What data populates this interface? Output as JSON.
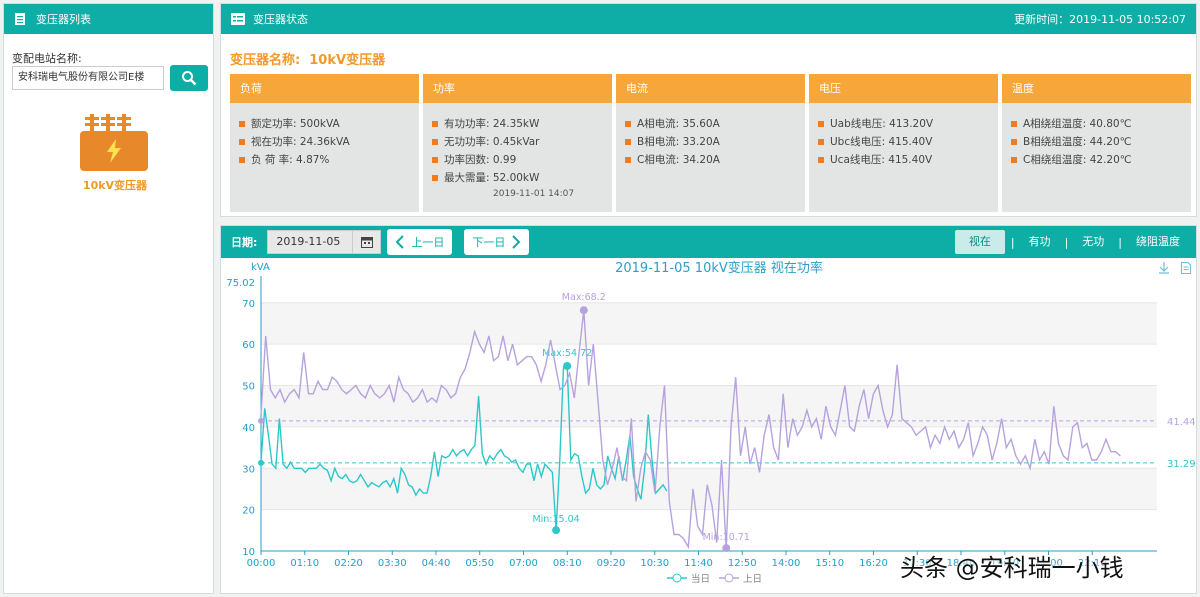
{
  "left_panel": {
    "title": "变压器列表",
    "station_label": "变配电站名称:",
    "station_value": "安科瑞电气股份有限公司E楼",
    "transformer_name": "10kV变压器"
  },
  "status_panel": {
    "title": "变压器状态",
    "update_label": "更新时间：",
    "update_time": "2019-11-05 10:52:07",
    "transformer_label": "变压器名称:",
    "transformer_value": "10kV变压器",
    "cards": [
      {
        "title": "负荷",
        "items": [
          "额定功率:   500kVA",
          "视在功率:   24.36kVA",
          "负 荷 率:   4.87%"
        ]
      },
      {
        "title": "功率",
        "items": [
          "有功功率:   24.35kW",
          "无功功率:   0.45kVar",
          "功率因数:   0.99",
          "最大需量:   52.00kW"
        ],
        "foot": "2019-11-01 14:07"
      },
      {
        "title": "电流",
        "items": [
          "A相电流:   35.60A",
          "B相电流:   33.20A",
          "C相电流:   34.20A"
        ]
      },
      {
        "title": "电压",
        "items": [
          "Uab线电压:   413.20V",
          "Ubc线电压:   415.40V",
          "Uca线电压:   415.40V"
        ]
      },
      {
        "title": "温度",
        "items": [
          "A相绕组温度:   40.80℃",
          "B相绕组温度:   44.20℃",
          "C相绕组温度:   42.20℃"
        ]
      }
    ]
  },
  "toolbar": {
    "date_label": "日期:",
    "date_value": "2019-11-05",
    "prev_label": "上一日",
    "next_label": "下一日",
    "tabs": [
      "视在",
      "有功",
      "无功",
      "绕阻温度"
    ]
  },
  "watermark": "头条 @安科瑞一小钱",
  "colors": {
    "teal": "#0eaea6",
    "orange": "#f7a739",
    "series_today": "#2ec7c9",
    "series_yesterday": "#b6a2de"
  },
  "chart_data": {
    "type": "line",
    "title": "2019-11-05  10kV变压器  视在功率",
    "ylabel": "kVA",
    "ylim": [
      10,
      75.02
    ],
    "ytick_top": "75.02",
    "yticks": [
      10,
      20,
      30,
      40,
      50,
      60,
      70
    ],
    "xticks": [
      "00:00",
      "01:10",
      "02:20",
      "03:30",
      "04:40",
      "05:50",
      "07:00",
      "08:10",
      "09:20",
      "10:30",
      "11:40",
      "12:50",
      "14:00",
      "15:10",
      "16:20",
      "17:30",
      "18:40",
      "19:50",
      "21:00",
      "22:10"
    ],
    "legend": [
      "当日",
      "上日"
    ],
    "series": [
      {
        "name": "当日",
        "color": "#2ec7c9",
        "max": {
          "label": "Max:54.72",
          "x": "08:10",
          "y": 54.72
        },
        "min": {
          "label": "Min:15.04",
          "x": "07:50",
          "y": 15.04
        },
        "avg": 31.29,
        "values": [
          31.5,
          44.5,
          38,
          31,
          30,
          42,
          31,
          30,
          31.5,
          30,
          30,
          30,
          29,
          30,
          30,
          30,
          31,
          30,
          29.5,
          27,
          30,
          28,
          27.5,
          28.5,
          27,
          26.5,
          27,
          28.5,
          27,
          25.5,
          26.5,
          26,
          25.5,
          26.5,
          27,
          25.5,
          27.5,
          24,
          30,
          28.5,
          26,
          25.5,
          23.5,
          25,
          24,
          24,
          28,
          34,
          28,
          33,
          32.5,
          33,
          34.5,
          33,
          34,
          34.5,
          33,
          34.5,
          35.5,
          47.5,
          33.5,
          31,
          33,
          32,
          33.5,
          34.5,
          33,
          32.5,
          31.5,
          32,
          30,
          29,
          31,
          31,
          27,
          31,
          28,
          31,
          30,
          29,
          15.04,
          32,
          54.5,
          54.72,
          32,
          33.5,
          33,
          28,
          24,
          25,
          30,
          26,
          25,
          26,
          33,
          30,
          27.5,
          33,
          27,
          32,
          38,
          28,
          25,
          22.5,
          30,
          43,
          32,
          24,
          25,
          26,
          24.5
        ]
      },
      {
        "name": "上日",
        "color": "#b6a2de",
        "max": {
          "label": "Max:68.2",
          "x": "08:10",
          "y": 68.2
        },
        "min": {
          "label": "Min:10.71",
          "x": "12:50",
          "y": 10.71
        },
        "avg": 41.44,
        "values": [
          43,
          62,
          49,
          47,
          49,
          46,
          48,
          49,
          47,
          58,
          48,
          48,
          51,
          49,
          49,
          52,
          51,
          49,
          48,
          49,
          50,
          48,
          47,
          50,
          48,
          47,
          48,
          50,
          46,
          52,
          49,
          48,
          46,
          47,
          49,
          46,
          47,
          46,
          50,
          49,
          47,
          48,
          52,
          54,
          58,
          63,
          60,
          58,
          62,
          56,
          57,
          62,
          56,
          60,
          55,
          56,
          57,
          57,
          55,
          51,
          55,
          61,
          55,
          49,
          50,
          53,
          47,
          58,
          68.2,
          50,
          60,
          46,
          32,
          26,
          30,
          35,
          28,
          27,
          42,
          22,
          30,
          34,
          32,
          24,
          40,
          50,
          22,
          14,
          14,
          13,
          11,
          25,
          16,
          14,
          26,
          21,
          12,
          32,
          10.71,
          40,
          52,
          33,
          40,
          31,
          35,
          29,
          38,
          43,
          35,
          32,
          48,
          35,
          42,
          38,
          40,
          44,
          40,
          42,
          37,
          45,
          40,
          38,
          44,
          50,
          40,
          39,
          45,
          49,
          42,
          48,
          50,
          44,
          40,
          43,
          55,
          42,
          41,
          40,
          38,
          39,
          40,
          35,
          38,
          36,
          40,
          37,
          39,
          35,
          37,
          41,
          33,
          36,
          40,
          38,
          32,
          36,
          42,
          35,
          37,
          33,
          31,
          33,
          30,
          37,
          32,
          34,
          31,
          45,
          36,
          33,
          32,
          40,
          41,
          35,
          36,
          32,
          32,
          34,
          37,
          34,
          34,
          33
        ]
      }
    ]
  }
}
